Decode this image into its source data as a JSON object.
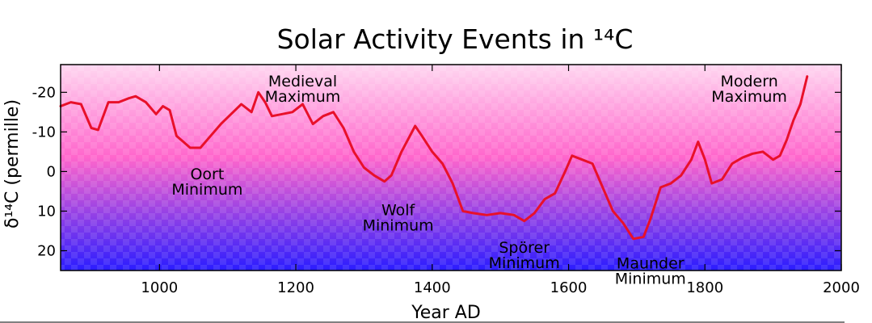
{
  "chart_data": {
    "type": "line",
    "title": "Solar Activity Events in ¹⁴C",
    "xlabel": "Year AD",
    "ylabel": "δ¹⁴C (permille)",
    "xlim": [
      855,
      2000
    ],
    "ylim": [
      25,
      -27
    ],
    "y_inverted": true,
    "xticks": [
      1000,
      1200,
      1400,
      1600,
      1800,
      2000
    ],
    "yticks": [
      -20,
      -10,
      0,
      10,
      20
    ],
    "ytick_labels": [
      "-20",
      "-10",
      "0",
      "10",
      "20"
    ],
    "grid": false,
    "legend": "none",
    "colors": {
      "line": "#e8102a",
      "background_top": "#ffd6f0",
      "background_mid": "#ff66cc",
      "background_bottom": "#2a1cff"
    },
    "series": [
      {
        "x": [
          855,
          870,
          885,
          900,
          910,
          925,
          940,
          955,
          965,
          980,
          995,
          1005,
          1015,
          1025,
          1035,
          1045,
          1060,
          1075,
          1090,
          1105,
          1120,
          1135,
          1145,
          1155,
          1165,
          1180,
          1195,
          1210,
          1225,
          1240,
          1255,
          1270,
          1285,
          1300,
          1315,
          1330,
          1340,
          1355,
          1375,
          1385,
          1400,
          1415,
          1430,
          1445,
          1460,
          1480,
          1500,
          1520,
          1535,
          1550,
          1565,
          1580,
          1595,
          1605,
          1620,
          1635,
          1650,
          1665,
          1680,
          1695,
          1710,
          1720,
          1735,
          1750,
          1765,
          1780,
          1790,
          1800,
          1810,
          1825,
          1840,
          1855,
          1870,
          1885,
          1900,
          1910,
          1920,
          1930,
          1940,
          1950
        ],
        "y": [
          -16.5,
          -17.5,
          -17,
          -11,
          -10.5,
          -17.5,
          -17.5,
          -18.5,
          -19,
          -17.5,
          -14.5,
          -16.5,
          -15.5,
          -9,
          -7.5,
          -6,
          -6,
          -9,
          -12,
          -14.5,
          -17,
          -15,
          -20,
          -17.5,
          -14,
          -14.5,
          -15,
          -17,
          -12,
          -14,
          -15,
          -11,
          -5,
          -1,
          1,
          2.5,
          1,
          -5,
          -11.5,
          -9,
          -5,
          -2,
          3,
          10,
          10.5,
          11,
          10.5,
          11,
          12.5,
          10.5,
          7,
          5.5,
          0,
          -4,
          -3,
          -2,
          4,
          10,
          13,
          17,
          16.5,
          12,
          4,
          3,
          1,
          -3,
          -7.5,
          -3,
          3,
          2,
          -2,
          -3.5,
          -4.5,
          -5,
          -3,
          -4,
          -8,
          -13,
          -17,
          -24
        ]
      }
    ],
    "annotations": [
      {
        "lines": [
          "Oort",
          "Minimum"
        ],
        "x": 1070,
        "y": 2
      },
      {
        "lines": [
          "Medieval",
          "Maximum"
        ],
        "x": 1210,
        "y": -21.5
      },
      {
        "lines": [
          "Wolf",
          "Minimum"
        ],
        "x": 1350,
        "y": 11
      },
      {
        "lines": [
          "Spörer",
          "Minimum"
        ],
        "x": 1535,
        "y": 20.5
      },
      {
        "lines": [
          "Maunder",
          "Minimum"
        ],
        "x": 1720,
        "y": 24.5
      },
      {
        "lines": [
          "Modern",
          "Maximum"
        ],
        "x": 1865,
        "y": -21.5
      }
    ]
  }
}
